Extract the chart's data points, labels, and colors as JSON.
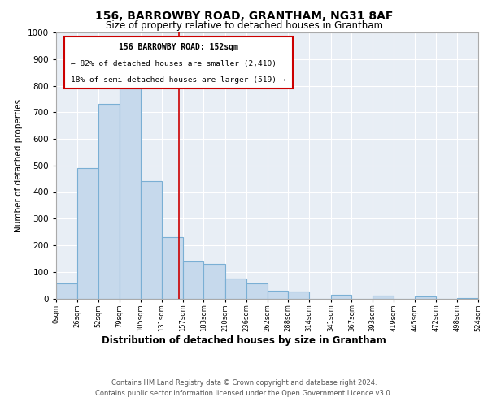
{
  "title": "156, BARROWBY ROAD, GRANTHAM, NG31 8AF",
  "subtitle": "Size of property relative to detached houses in Grantham",
  "xlabel": "Distribution of detached houses by size in Grantham",
  "ylabel": "Number of detached properties",
  "footer_line1": "Contains HM Land Registry data © Crown copyright and database right 2024.",
  "footer_line2": "Contains public sector information licensed under the Open Government Licence v3.0.",
  "annotation_line1": "156 BARROWBY ROAD: 152sqm",
  "annotation_line2": "← 82% of detached houses are smaller (2,410)",
  "annotation_line3": "18% of semi-detached houses are larger (519) →",
  "property_size": 152,
  "bar_edges": [
    0,
    26,
    52,
    79,
    105,
    131,
    157,
    183,
    210,
    236,
    262,
    288,
    314,
    341,
    367,
    393,
    419,
    445,
    472,
    498,
    524
  ],
  "bar_heights": [
    55,
    490,
    730,
    790,
    440,
    230,
    140,
    130,
    75,
    55,
    30,
    25,
    0,
    15,
    0,
    10,
    0,
    8,
    0,
    3
  ],
  "bar_color": "#c6d9ec",
  "bar_edge_color": "#7aafd4",
  "vline_color": "#cc0000",
  "vline_x": 152,
  "annotation_box_color": "#cc0000",
  "background_color": "#e8eef5",
  "grid_color": "#ffffff",
  "ylim": [
    0,
    1000
  ],
  "yticks": [
    0,
    100,
    200,
    300,
    400,
    500,
    600,
    700,
    800,
    900,
    1000
  ]
}
